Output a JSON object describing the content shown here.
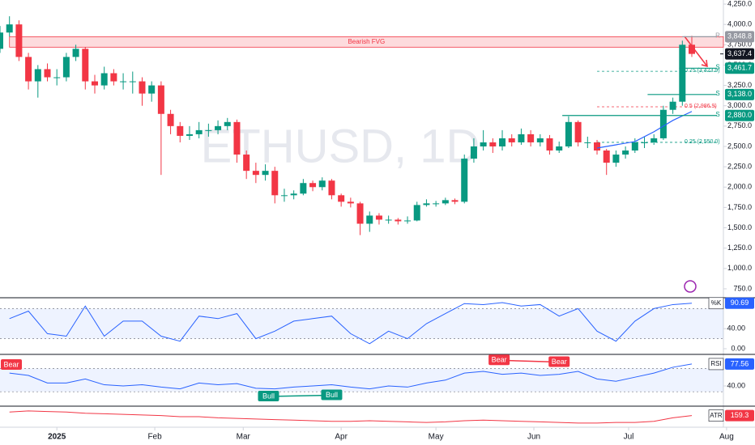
{
  "chart_data": [
    {
      "type": "candlestick",
      "title": "ETHUSD, 1D",
      "x": [
        -18,
        -15,
        -12,
        -9,
        -6,
        -3,
        0,
        3,
        6,
        9,
        12,
        15,
        18,
        21,
        24,
        27,
        30,
        33,
        36,
        39,
        42,
        45,
        48,
        51,
        54,
        57,
        60,
        63,
        66,
        69,
        72,
        75,
        78,
        81,
        84,
        87,
        90,
        93,
        96,
        99,
        102,
        105,
        108,
        111,
        114,
        117,
        120,
        123,
        126,
        129,
        132,
        135,
        138,
        141,
        144,
        147,
        150,
        153,
        156,
        159,
        162,
        165,
        168,
        171,
        174,
        177,
        180,
        183,
        186,
        189,
        192,
        195,
        198,
        201
      ],
      "open": [
        3700,
        3900,
        4000,
        3600,
        3300,
        3450,
        3350,
        3350,
        3600,
        3700,
        3300,
        3250,
        3400,
        3300,
        3300,
        3300,
        3150,
        3250,
        2900,
        2750,
        2630,
        2650,
        2700,
        2700,
        2750,
        2800,
        2400,
        2200,
        2150,
        2200,
        1900,
        1900,
        1920,
        2050,
        2000,
        2080,
        1900,
        1820,
        1800,
        1550,
        1650,
        1600,
        1600,
        1580,
        1590,
        1780,
        1800,
        1800,
        1840,
        1820,
        2350,
        2500,
        2550,
        2500,
        2600,
        2550,
        2650,
        2550,
        2600,
        2450,
        2500,
        2800,
        2550,
        2550,
        2450,
        2300,
        2400,
        2450,
        2550,
        2550,
        2600,
        2950,
        3050,
        3750
      ],
      "high": [
        3980,
        4100,
        4050,
        3650,
        3500,
        3520,
        3450,
        3650,
        3750,
        3720,
        3380,
        3480,
        3450,
        3400,
        3420,
        3350,
        3300,
        3300,
        2950,
        2800,
        2750,
        2800,
        2780,
        2820,
        2850,
        2830,
        2450,
        2300,
        2280,
        2250,
        1980,
        1960,
        2100,
        2080,
        2120,
        2100,
        1920,
        1870,
        1820,
        1700,
        1680,
        1650,
        1620,
        1640,
        1820,
        1850,
        1830,
        1870,
        1860,
        2400,
        2600,
        2700,
        2600,
        2700,
        2650,
        2720,
        2700,
        2650,
        2640,
        2560,
        2870,
        2820,
        2620,
        2580,
        2470,
        2450,
        2500,
        2600,
        2620,
        2650,
        3000,
        3100,
        3800,
        3860
      ],
      "low": [
        3650,
        3850,
        3550,
        3200,
        3100,
        3300,
        3250,
        3300,
        3550,
        3200,
        3150,
        3200,
        3250,
        3200,
        3150,
        3000,
        3050,
        2150,
        2650,
        2550,
        2580,
        2600,
        2620,
        2650,
        2700,
        2300,
        2100,
        2050,
        2080,
        1800,
        1820,
        1850,
        1900,
        1950,
        1960,
        1850,
        1760,
        1750,
        1410,
        1450,
        1540,
        1550,
        1540,
        1550,
        1580,
        1760,
        1760,
        1780,
        1790,
        1800,
        2300,
        2450,
        2420,
        2450,
        2500,
        2520,
        2500,
        2500,
        2400,
        2420,
        2480,
        2500,
        2480,
        2400,
        2150,
        2250,
        2350,
        2420,
        2480,
        2520,
        2580,
        2900,
        3000,
        3600
      ],
      "close": [
        3900,
        4000,
        3600,
        3300,
        3450,
        3350,
        3350,
        3600,
        3700,
        3300,
        3250,
        3400,
        3300,
        3300,
        3300,
        3150,
        3250,
        2900,
        2750,
        2630,
        2650,
        2700,
        2700,
        2750,
        2800,
        2400,
        2200,
        2150,
        2200,
        1900,
        1900,
        1920,
        2050,
        2000,
        2080,
        1900,
        1820,
        1800,
        1550,
        1650,
        1600,
        1600,
        1580,
        1590,
        1780,
        1800,
        1800,
        1840,
        1820,
        2350,
        2500,
        2550,
        2500,
        2600,
        2550,
        2650,
        2550,
        2600,
        2450,
        2500,
        2800,
        2550,
        2550,
        2450,
        2300,
        2400,
        2450,
        2550,
        2550,
        2600,
        2950,
        3050,
        3750,
        3637.4
      ],
      "last_label": "3,637.4",
      "up_color": "#089981",
      "down_color": "#f23645",
      "xlim": [
        -18,
        211
      ],
      "xticks": [
        {
          "value": 0,
          "label": "2025"
        },
        {
          "value": 31,
          "label": "Feb"
        },
        {
          "value": 59,
          "label": "Mar"
        },
        {
          "value": 90,
          "label": "Apr"
        },
        {
          "value": 120,
          "label": "May"
        },
        {
          "value": 151,
          "label": "Jun"
        },
        {
          "value": 181,
          "label": "Jul"
        },
        {
          "value": 212,
          "label": "Aug"
        }
      ],
      "ylim": [
        650,
        4300
      ],
      "yticks": [
        {
          "value": 750,
          "label": "750.0"
        },
        {
          "value": 1000,
          "label": "1,000.0"
        },
        {
          "value": 1250,
          "label": "1,250.0"
        },
        {
          "value": 1500,
          "label": "1,500.0"
        },
        {
          "value": 1750,
          "label": "1,750.0"
        },
        {
          "value": 2000,
          "label": "2,000.0"
        },
        {
          "value": 2250,
          "label": "2,250.0"
        },
        {
          "value": 2500,
          "label": "2,500.0"
        },
        {
          "value": 2750,
          "label": "2,750.0"
        },
        {
          "value": 3000,
          "label": "3,000.0"
        },
        {
          "value": 3250,
          "label": "3,250.0"
        },
        {
          "value": 3500,
          "label": "3,500.0"
        },
        {
          "value": 3750,
          "label": "3,750.0"
        },
        {
          "value": 4000,
          "label": "4,000.0"
        },
        {
          "value": 4250,
          "label": "4,250.0"
        }
      ],
      "ma": {
        "color": "#2962ff",
        "x": [
          171,
          177,
          183,
          189,
          195,
          201
        ],
        "values": [
          2480,
          2520,
          2560,
          2680,
          2820,
          2930
        ]
      },
      "fvg": {
        "label": "Bearish FVG",
        "top": 3848.8,
        "bottom": 3720,
        "from": -15,
        "color": "#f23645"
      },
      "levels": [
        {
          "label": "R",
          "value": 3848.8,
          "value_label": "3,848.8",
          "from": 198,
          "color": "#9598a1"
        },
        {
          "label": "S",
          "value": 3461.7,
          "value_label": "3,461.7",
          "from": 197,
          "color": "#089981"
        },
        {
          "label": "S",
          "value": 3138,
          "value_label": "3,138.0",
          "from": 187,
          "color": "#089981"
        },
        {
          "label": "S",
          "value": 2880,
          "value_label": "2,880.0",
          "from": 160,
          "color": "#089981"
        }
      ],
      "fib": [
        {
          "label": "0.75 (3,423.9)",
          "value": 3423.9,
          "from": 171,
          "color": "#089981"
        },
        {
          "label": "0.5 (2,986.9)",
          "value": 2986.9,
          "from": 171,
          "color": "#f23645"
        },
        {
          "label": "0.25 (2,550.0)",
          "value": 2550,
          "from": 171,
          "color": "#089981"
        }
      ]
    },
    {
      "type": "line",
      "name": "%K",
      "color": "#2962ff",
      "x": [
        -15,
        -9,
        -3,
        3,
        9,
        15,
        21,
        27,
        33,
        39,
        45,
        51,
        57,
        63,
        69,
        75,
        81,
        87,
        93,
        99,
        105,
        111,
        117,
        123,
        129,
        135,
        141,
        147,
        153,
        159,
        165,
        171,
        177,
        183,
        189,
        195,
        201
      ],
      "values": [
        60,
        75,
        30,
        25,
        85,
        25,
        55,
        55,
        25,
        15,
        65,
        60,
        70,
        20,
        35,
        55,
        60,
        65,
        30,
        10,
        35,
        20,
        50,
        70,
        90,
        88,
        92,
        85,
        88,
        65,
        80,
        35,
        15,
        55,
        80,
        88,
        90.69
      ],
      "ylim": [
        0,
        100
      ],
      "yticks": [
        {
          "value": 0,
          "label": "0.00"
        },
        {
          "value": 40,
          "label": "40.00"
        }
      ],
      "bands": [
        20,
        80
      ]
    },
    {
      "type": "line",
      "name": "RSI",
      "color": "#2962ff",
      "x": [
        -15,
        -9,
        -3,
        3,
        9,
        15,
        21,
        27,
        33,
        39,
        45,
        51,
        57,
        63,
        69,
        75,
        81,
        87,
        93,
        99,
        105,
        111,
        117,
        123,
        129,
        135,
        141,
        147,
        153,
        159,
        165,
        171,
        177,
        183,
        189,
        195,
        201
      ],
      "values": [
        62,
        58,
        45,
        45,
        52,
        42,
        40,
        42,
        38,
        35,
        45,
        42,
        44,
        36,
        35,
        38,
        40,
        42,
        38,
        35,
        40,
        38,
        45,
        50,
        62,
        65,
        60,
        62,
        58,
        60,
        65,
        52,
        48,
        55,
        62,
        72,
        77.56
      ],
      "ylim": [
        20,
        98
      ],
      "yticks": [
        {
          "value": 40,
          "label": "40.00"
        }
      ],
      "bands": [
        30,
        70
      ],
      "signals": [
        {
          "label": "Bear",
          "x": -18,
          "value": 76,
          "color": "#f23645"
        },
        {
          "label": "Bull",
          "x": 67,
          "value": 22,
          "color": "#089981"
        },
        {
          "label": "Bull",
          "x": 87,
          "value": 24,
          "color": "#089981"
        },
        {
          "label": "Bear",
          "x": 140,
          "value": 84,
          "color": "#f23645"
        },
        {
          "label": "Bear",
          "x": 159,
          "value": 81,
          "color": "#f23645"
        }
      ]
    },
    {
      "type": "line",
      "name": "ATR",
      "color": "#f23645",
      "x": [
        -15,
        -9,
        -3,
        3,
        9,
        15,
        21,
        27,
        33,
        39,
        45,
        51,
        57,
        63,
        69,
        75,
        81,
        87,
        93,
        99,
        105,
        111,
        117,
        123,
        129,
        135,
        141,
        147,
        153,
        159,
        165,
        171,
        177,
        183,
        189,
        195,
        201
      ],
      "values": [
        190,
        200,
        195,
        190,
        180,
        175,
        170,
        165,
        160,
        150,
        150,
        140,
        135,
        130,
        125,
        120,
        115,
        110,
        110,
        115,
        110,
        105,
        100,
        105,
        115,
        120,
        115,
        110,
        105,
        100,
        95,
        95,
        100,
        100,
        110,
        140,
        159.3
      ],
      "ylim": [
        80,
        220
      ]
    }
  ]
}
